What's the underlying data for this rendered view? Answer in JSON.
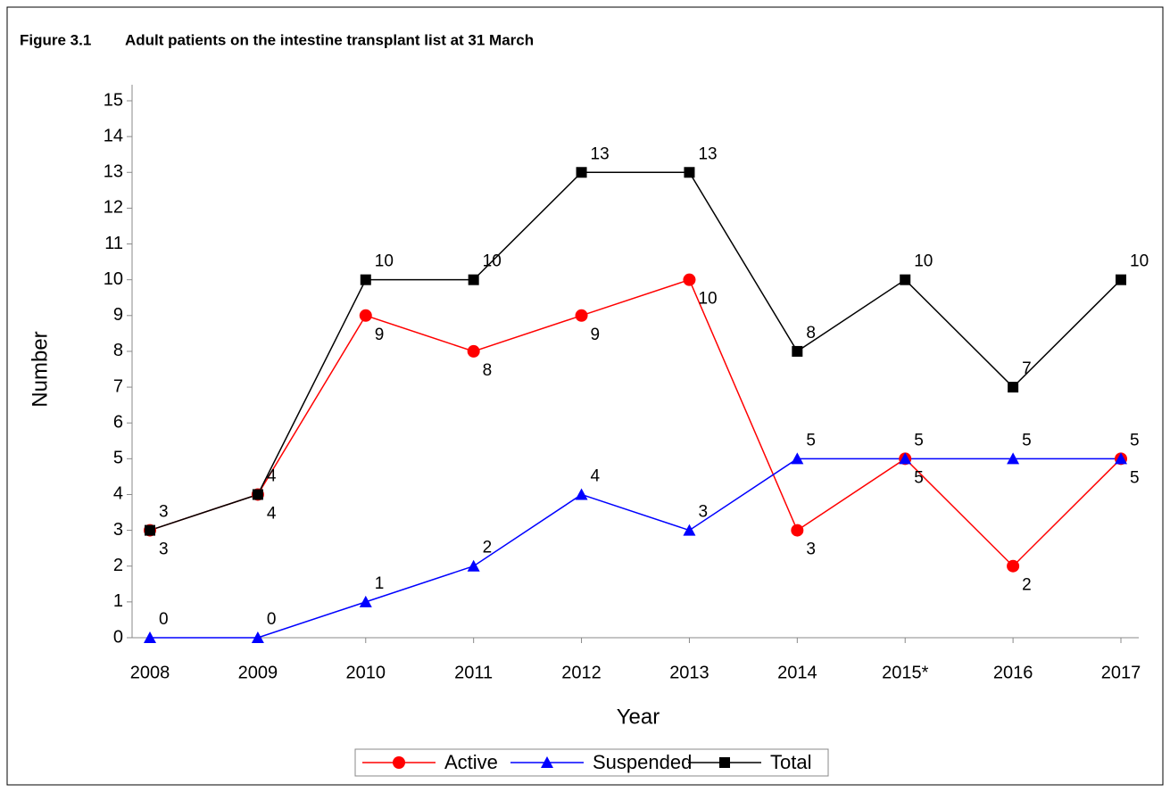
{
  "chart_data": {
    "type": "line",
    "figure_label": "Figure 3.1",
    "title": "Adult patients on the intestine transplant list at 31 March",
    "x_label": "Year",
    "y_label": "Number",
    "categories": [
      "2008",
      "2009",
      "2010",
      "2011",
      "2012",
      "2013",
      "2014",
      "2015*",
      "2016",
      "2017"
    ],
    "series": [
      {
        "name": "Active",
        "color": "#ff0000",
        "marker": "circle",
        "values": [
          3,
          4,
          9,
          8,
          9,
          10,
          3,
          5,
          2,
          5
        ]
      },
      {
        "name": "Suspended",
        "color": "#0000ff",
        "marker": "triangle",
        "values": [
          0,
          0,
          1,
          2,
          4,
          3,
          5,
          5,
          5,
          5
        ]
      },
      {
        "name": "Total",
        "color": "#000000",
        "marker": "square",
        "values": [
          3,
          4,
          10,
          10,
          13,
          13,
          8,
          10,
          7,
          10
        ]
      }
    ],
    "ylim": [
      0,
      15
    ],
    "yticks": [
      0,
      1,
      2,
      3,
      4,
      5,
      6,
      7,
      8,
      9,
      10,
      11,
      12,
      13,
      14,
      15
    ],
    "grid": false,
    "legend": "bottom"
  }
}
